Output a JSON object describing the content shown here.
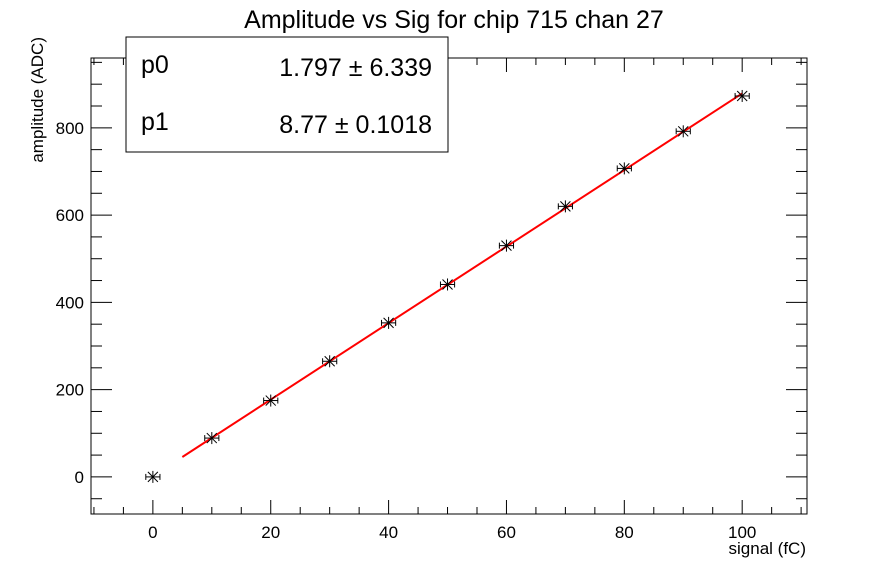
{
  "chart_data": {
    "type": "scatter",
    "title": "Amplitude vs Sig for chip 715 chan 27",
    "xlabel": "signal (fC)",
    "ylabel": "amplitude (ADC)",
    "xlim": [
      -10.5,
      111
    ],
    "ylim": [
      -85,
      960
    ],
    "x_ticks": [
      0,
      20,
      40,
      60,
      80,
      100
    ],
    "y_ticks": [
      0,
      200,
      400,
      600,
      800
    ],
    "grid": false,
    "series": [
      {
        "x": [
          0,
          10,
          20,
          30,
          40,
          50,
          60,
          70,
          80,
          90,
          100
        ],
        "y": [
          0,
          89,
          175,
          265,
          353,
          441,
          530,
          620,
          707,
          792,
          873
        ],
        "x_err": 1.2,
        "marker": "star",
        "color": "#000000"
      }
    ],
    "fit": {
      "color": "#ff0000",
      "x_range": [
        5,
        100
      ],
      "intercept": 1.797,
      "slope": 8.77
    },
    "stats_box": [
      {
        "name": "p0",
        "value": "1.797 ± 6.339"
      },
      {
        "name": "p1",
        "value": "8.77 ± 0.1018"
      }
    ]
  }
}
